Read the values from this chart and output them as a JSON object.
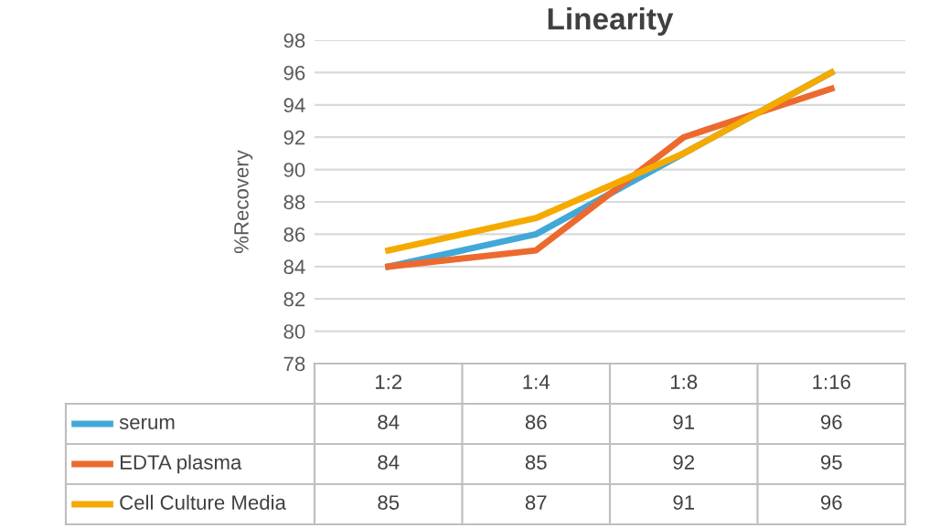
{
  "chart_data": {
    "type": "line",
    "title": "Linearity",
    "ylabel": "%Recovery",
    "categories": [
      "1:2",
      "1:4",
      "1:8",
      "1:16"
    ],
    "series": [
      {
        "name": "serum",
        "color": "#41a8d8",
        "values": [
          84,
          86,
          91,
          96
        ]
      },
      {
        "name": "EDTA plasma",
        "color": "#ec6a2e",
        "values": [
          84,
          85,
          92,
          95
        ]
      },
      {
        "name": "Cell Culture Media",
        "color": "#f5aa00",
        "values": [
          85,
          87,
          91,
          96
        ]
      }
    ],
    "ylim": [
      78,
      98
    ],
    "yticks": [
      78,
      80,
      82,
      84,
      86,
      88,
      90,
      92,
      94,
      96,
      98
    ],
    "grid": "y",
    "data_labels": true,
    "legend": "bottom",
    "marker": "none",
    "line_style": "solid"
  }
}
